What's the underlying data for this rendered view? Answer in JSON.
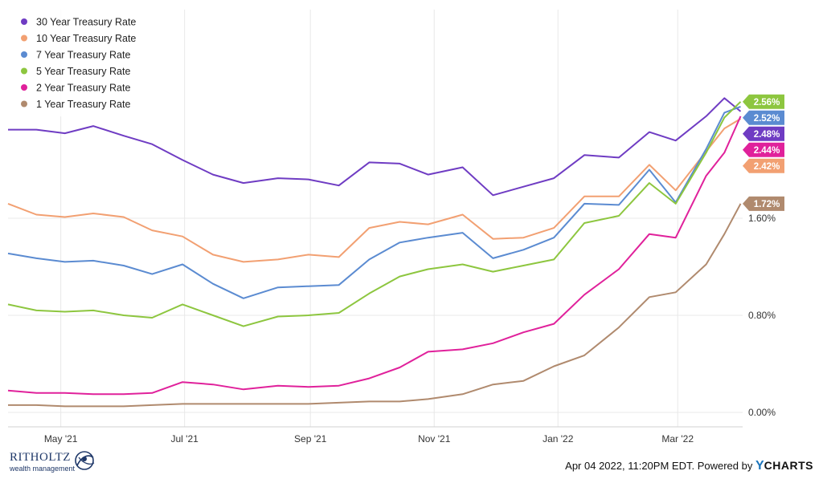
{
  "chart_data": {
    "type": "line",
    "x_ticks": [
      "May '21",
      "Jul '21",
      "Sep '21",
      "Nov '21",
      "Jan '22",
      "Mar '22"
    ],
    "y_ticks": [
      "0.00%",
      "0.80%",
      "1.60%"
    ],
    "ylim": [
      0,
      3.2
    ],
    "grid": true,
    "legend_position": "top-left",
    "series": [
      {
        "name": "30 Year Treasury Rate",
        "color": "#6f3cc3",
        "end_label": "2.48%",
        "x": [
          "2021-04-05",
          "2021-04-19",
          "2021-05-03",
          "2021-05-17",
          "2021-06-01",
          "2021-06-15",
          "2021-06-30",
          "2021-07-15",
          "2021-07-30",
          "2021-08-16",
          "2021-08-31",
          "2021-09-15",
          "2021-09-30",
          "2021-10-15",
          "2021-10-29",
          "2021-11-15",
          "2021-11-30",
          "2021-12-15",
          "2021-12-30",
          "2022-01-14",
          "2022-01-31",
          "2022-02-15",
          "2022-02-28",
          "2022-03-15",
          "2022-03-24",
          "2022-04-01"
        ],
        "values": [
          2.33,
          2.33,
          2.3,
          2.36,
          2.28,
          2.21,
          2.08,
          1.96,
          1.89,
          1.93,
          1.92,
          1.87,
          2.06,
          2.05,
          1.96,
          2.02,
          1.79,
          1.86,
          1.93,
          2.12,
          2.1,
          2.31,
          2.24,
          2.44,
          2.59,
          2.48
        ]
      },
      {
        "name": "10 Year Treasury Rate",
        "color": "#f2a072",
        "end_label": "2.42%",
        "x": [
          "2021-04-05",
          "2021-04-19",
          "2021-05-03",
          "2021-05-17",
          "2021-06-01",
          "2021-06-15",
          "2021-06-30",
          "2021-07-15",
          "2021-07-30",
          "2021-08-16",
          "2021-08-31",
          "2021-09-15",
          "2021-09-30",
          "2021-10-15",
          "2021-10-29",
          "2021-11-15",
          "2021-11-30",
          "2021-12-15",
          "2021-12-30",
          "2022-01-14",
          "2022-01-31",
          "2022-02-15",
          "2022-02-28",
          "2022-03-15",
          "2022-03-24",
          "2022-04-01"
        ],
        "values": [
          1.72,
          1.63,
          1.61,
          1.64,
          1.61,
          1.5,
          1.45,
          1.3,
          1.24,
          1.26,
          1.3,
          1.28,
          1.52,
          1.57,
          1.55,
          1.63,
          1.43,
          1.44,
          1.52,
          1.78,
          1.78,
          2.04,
          1.83,
          2.15,
          2.34,
          2.42
        ]
      },
      {
        "name": "7 Year Treasury Rate",
        "color": "#5b8bd1",
        "end_label": "2.52%",
        "x": [
          "2021-04-05",
          "2021-04-19",
          "2021-05-03",
          "2021-05-17",
          "2021-06-01",
          "2021-06-15",
          "2021-06-30",
          "2021-07-15",
          "2021-07-30",
          "2021-08-16",
          "2021-08-31",
          "2021-09-15",
          "2021-09-30",
          "2021-10-15",
          "2021-10-29",
          "2021-11-15",
          "2021-11-30",
          "2021-12-15",
          "2021-12-30",
          "2022-01-14",
          "2022-01-31",
          "2022-02-15",
          "2022-02-28",
          "2022-03-15",
          "2022-03-24",
          "2022-04-01"
        ],
        "values": [
          1.31,
          1.27,
          1.24,
          1.25,
          1.21,
          1.14,
          1.22,
          1.06,
          0.94,
          1.03,
          1.04,
          1.05,
          1.26,
          1.4,
          1.44,
          1.48,
          1.27,
          1.34,
          1.44,
          1.72,
          1.71,
          2.0,
          1.73,
          2.17,
          2.47,
          2.52
        ]
      },
      {
        "name": "5 Year Treasury Rate",
        "color": "#8dc63f",
        "end_label": "2.56%",
        "x": [
          "2021-04-05",
          "2021-04-19",
          "2021-05-03",
          "2021-05-17",
          "2021-06-01",
          "2021-06-15",
          "2021-06-30",
          "2021-07-15",
          "2021-07-30",
          "2021-08-16",
          "2021-08-31",
          "2021-09-15",
          "2021-09-30",
          "2021-10-15",
          "2021-10-29",
          "2021-11-15",
          "2021-11-30",
          "2021-12-15",
          "2021-12-30",
          "2022-01-14",
          "2022-01-31",
          "2022-02-15",
          "2022-02-28",
          "2022-03-15",
          "2022-03-24",
          "2022-04-01"
        ],
        "values": [
          0.89,
          0.84,
          0.83,
          0.84,
          0.8,
          0.78,
          0.89,
          0.8,
          0.71,
          0.79,
          0.8,
          0.82,
          0.98,
          1.12,
          1.18,
          1.22,
          1.16,
          1.21,
          1.26,
          1.56,
          1.62,
          1.89,
          1.72,
          2.14,
          2.43,
          2.56
        ]
      },
      {
        "name": "2 Year Treasury Rate",
        "color": "#e0219b",
        "end_label": "2.44%",
        "x": [
          "2021-04-05",
          "2021-04-19",
          "2021-05-03",
          "2021-05-17",
          "2021-06-01",
          "2021-06-15",
          "2021-06-30",
          "2021-07-15",
          "2021-07-30",
          "2021-08-16",
          "2021-08-31",
          "2021-09-15",
          "2021-09-30",
          "2021-10-15",
          "2021-10-29",
          "2021-11-15",
          "2021-11-30",
          "2021-12-15",
          "2021-12-30",
          "2022-01-14",
          "2022-01-31",
          "2022-02-15",
          "2022-02-28",
          "2022-03-15",
          "2022-03-24",
          "2022-04-01"
        ],
        "values": [
          0.18,
          0.16,
          0.16,
          0.15,
          0.15,
          0.16,
          0.25,
          0.23,
          0.19,
          0.22,
          0.21,
          0.22,
          0.28,
          0.37,
          0.5,
          0.52,
          0.57,
          0.66,
          0.73,
          0.97,
          1.18,
          1.47,
          1.44,
          1.95,
          2.14,
          2.44
        ]
      },
      {
        "name": "1 Year Treasury Rate",
        "color": "#b08a6e",
        "end_label": "1.72%",
        "x": [
          "2021-04-05",
          "2021-04-19",
          "2021-05-03",
          "2021-05-17",
          "2021-06-01",
          "2021-06-15",
          "2021-06-30",
          "2021-07-15",
          "2021-07-30",
          "2021-08-16",
          "2021-08-31",
          "2021-09-15",
          "2021-09-30",
          "2021-10-15",
          "2021-10-29",
          "2021-11-15",
          "2021-11-30",
          "2021-12-15",
          "2021-12-30",
          "2022-01-14",
          "2022-01-31",
          "2022-02-15",
          "2022-02-28",
          "2022-03-15",
          "2022-03-24",
          "2022-04-01"
        ],
        "values": [
          0.06,
          0.06,
          0.05,
          0.05,
          0.05,
          0.06,
          0.07,
          0.07,
          0.07,
          0.07,
          0.07,
          0.08,
          0.09,
          0.09,
          0.11,
          0.15,
          0.23,
          0.26,
          0.38,
          0.47,
          0.7,
          0.95,
          0.99,
          1.22,
          1.47,
          1.72
        ]
      }
    ]
  },
  "footer": {
    "brand_name": "RITHOLTZ",
    "brand_sub": "wealth management",
    "timestamp": "Apr 04 2022, 11:20PM EDT.",
    "powered_by": "Powered by",
    "ycharts_y": "Y",
    "ycharts_rest": "CHARTS"
  }
}
